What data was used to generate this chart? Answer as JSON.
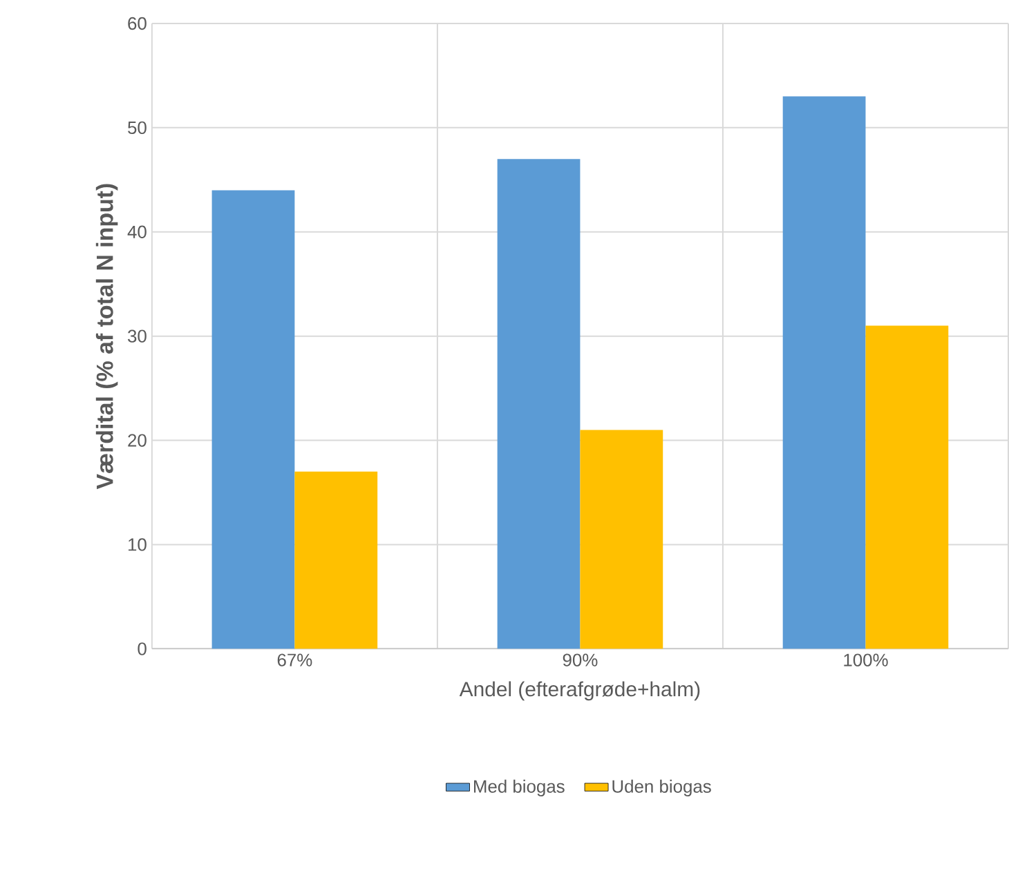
{
  "chart_data": {
    "type": "bar",
    "xlabel": "Andel (efterafgrøde+halm)",
    "ylabel": "Værdital (% af total N input)",
    "categories": [
      "67%",
      "90%",
      "100%"
    ],
    "series": [
      {
        "name": "Med biogas",
        "color": "#5b9bd5",
        "values": [
          44,
          47,
          53
        ]
      },
      {
        "name": "Uden biogas",
        "color": "#ffc000",
        "values": [
          17,
          21,
          31
        ]
      }
    ],
    "ylim": [
      0,
      60
    ],
    "yticks": [
      0,
      10,
      20,
      30,
      40,
      50,
      60
    ],
    "grid": true,
    "legend": "bottom"
  }
}
